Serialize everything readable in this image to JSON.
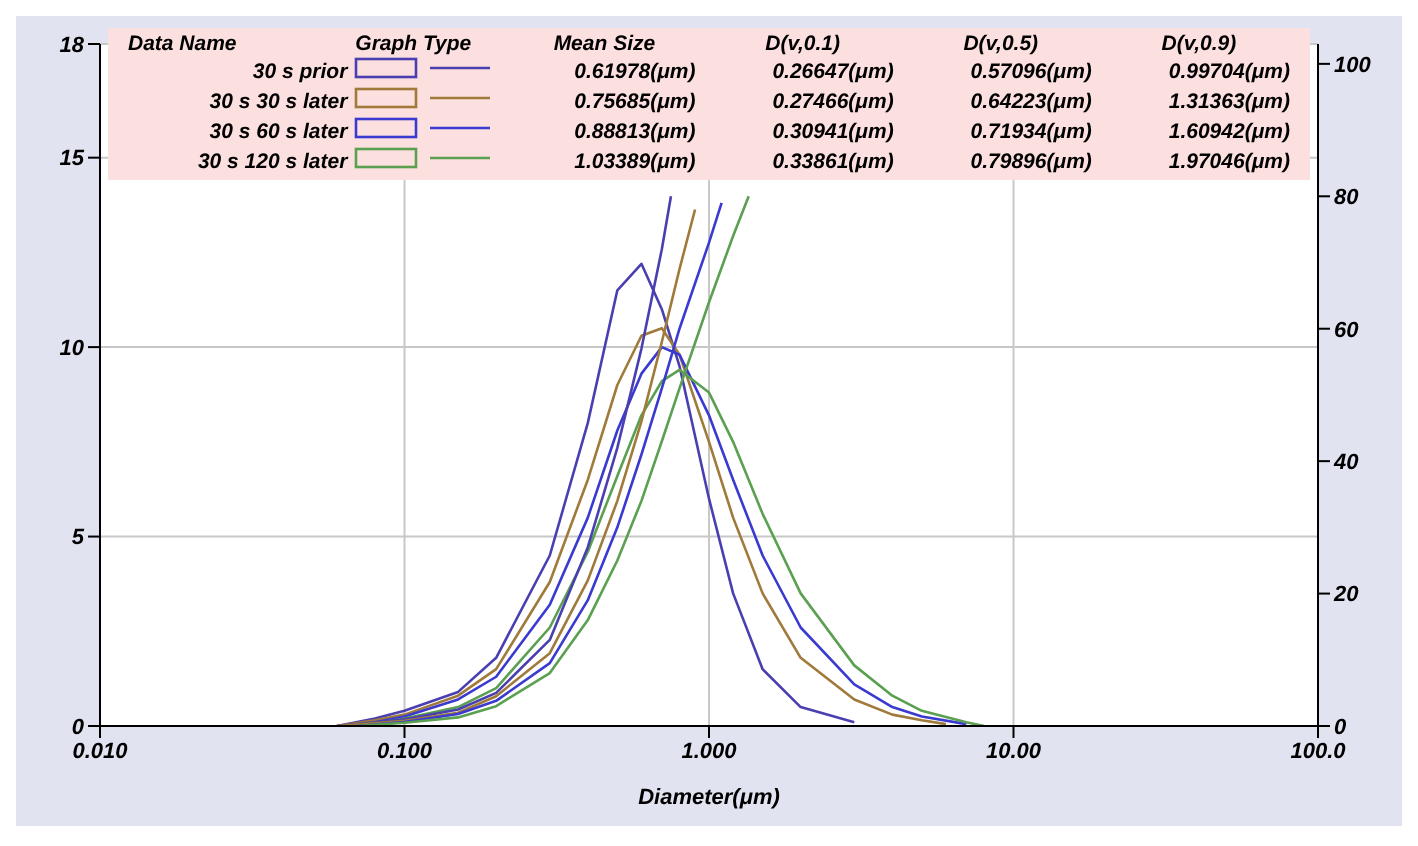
{
  "chart_data": {
    "type": "line",
    "xlabel": "Diameter(μm)",
    "log": "x",
    "grid": true,
    "legend": "top",
    "marker": "none",
    "line_style": "solid",
    "xlim": [
      0.01,
      100
    ],
    "xticks": [
      {
        "value": 0.01,
        "label": "0.010"
      },
      {
        "value": 0.1,
        "label": "0.100"
      },
      {
        "value": 1,
        "label": "1.000"
      },
      {
        "value": 10,
        "label": "10.00"
      },
      {
        "value": 100,
        "label": "100.0"
      }
    ],
    "ylim": [
      0,
      18
    ],
    "yticks": [
      0,
      5,
      10,
      15,
      18
    ],
    "y2lim": [
      0,
      103
    ],
    "y2ticks": [
      0,
      20,
      40,
      60,
      80,
      100
    ],
    "annotations": [
      "Data Name",
      "Graph Type",
      "Mean Size",
      "D(v,0.1)",
      "D(v,0.5)",
      "D(v,0.9)",
      "0.61978(μm)",
      "0.26647(μm)",
      "0.57096(μm)",
      "0.99704(μm)",
      "0.75685(μm)",
      "0.27466(μm)",
      "0.64223(μm)",
      "1.31363(μm)",
      "0.88813(μm)",
      "0.30941(μm)",
      "0.71934(μm)",
      "1.60942(μm)",
      "1.03389(μm)",
      "0.33861(μm)",
      "0.79896(μm)",
      "1.97046(μm)"
    ],
    "series": [
      {
        "name": "30 s prior",
        "color": "#4a3fb0",
        "x": [
          0.06,
          0.08,
          0.1,
          0.15,
          0.2,
          0.3,
          0.4,
          0.5,
          0.6,
          0.7,
          0.8,
          1.0,
          1.2,
          1.5,
          2,
          3
        ],
        "values": [
          0,
          0.2,
          0.4,
          0.9,
          1.8,
          4.5,
          8,
          11.5,
          12.2,
          11,
          9.5,
          6,
          3.5,
          1.5,
          0.5,
          0.1
        ]
      },
      {
        "name": "30 s 30 s later",
        "color": "#a07a3a",
        "x": [
          0.06,
          0.08,
          0.1,
          0.15,
          0.2,
          0.3,
          0.4,
          0.5,
          0.6,
          0.7,
          0.8,
          1.0,
          1.2,
          1.5,
          2,
          3,
          4,
          5,
          6
        ],
        "values": [
          0,
          0.15,
          0.3,
          0.8,
          1.5,
          3.8,
          6.5,
          9,
          10.3,
          10.5,
          9.8,
          7.5,
          5.5,
          3.5,
          1.8,
          0.7,
          0.3,
          0.15,
          0.05
        ]
      },
      {
        "name": "30 s 60 s later",
        "color": "#3a3ad0",
        "x": [
          0.07,
          0.08,
          0.1,
          0.15,
          0.2,
          0.3,
          0.4,
          0.5,
          0.6,
          0.7,
          0.8,
          1.0,
          1.2,
          1.5,
          2,
          3,
          4,
          5,
          7
        ],
        "values": [
          0,
          0.1,
          0.25,
          0.7,
          1.3,
          3.2,
          5.5,
          7.8,
          9.3,
          10,
          9.8,
          8.2,
          6.5,
          4.5,
          2.6,
          1.1,
          0.5,
          0.25,
          0.05
        ]
      },
      {
        "name": "30 s 120 s later",
        "color": "#5aa050",
        "x": [
          0.07,
          0.1,
          0.15,
          0.2,
          0.3,
          0.4,
          0.5,
          0.6,
          0.7,
          0.8,
          1.0,
          1.2,
          1.5,
          2,
          3,
          4,
          5,
          7,
          8
        ],
        "values": [
          0,
          0.2,
          0.5,
          1,
          2.6,
          4.6,
          6.6,
          8.2,
          9.1,
          9.4,
          8.8,
          7.5,
          5.6,
          3.5,
          1.6,
          0.8,
          0.4,
          0.1,
          0
        ]
      },
      {
        "color": "#4a3fb0",
        "axis": "y2",
        "x": [
          0.06,
          0.1,
          0.15,
          0.2,
          0.3,
          0.4,
          0.5,
          0.6,
          0.7,
          0.75
        ],
        "values": [
          0,
          1,
          2.5,
          5,
          13,
          27,
          42,
          57,
          72,
          80
        ]
      },
      {
        "color": "#a07a3a",
        "axis": "y2",
        "x": [
          0.06,
          0.1,
          0.15,
          0.2,
          0.3,
          0.4,
          0.5,
          0.6,
          0.7,
          0.8,
          0.9
        ],
        "values": [
          0,
          0.8,
          2,
          4.5,
          11,
          22,
          34,
          46,
          58,
          69,
          78
        ]
      },
      {
        "color": "#3a3ad0",
        "axis": "y2",
        "x": [
          0.07,
          0.1,
          0.15,
          0.2,
          0.3,
          0.4,
          0.5,
          0.6,
          0.7,
          0.8,
          1.0,
          1.1
        ],
        "values": [
          0,
          0.6,
          1.8,
          3.8,
          9.5,
          19,
          30,
          41,
          51,
          60,
          73,
          79
        ]
      },
      {
        "color": "#5aa050",
        "axis": "y2",
        "x": [
          0.07,
          0.1,
          0.15,
          0.2,
          0.3,
          0.4,
          0.5,
          0.6,
          0.7,
          0.8,
          1.0,
          1.2,
          1.35
        ],
        "values": [
          0,
          0.5,
          1.3,
          3,
          8,
          16,
          25,
          34,
          43,
          51,
          64,
          74,
          80
        ]
      }
    ]
  }
}
